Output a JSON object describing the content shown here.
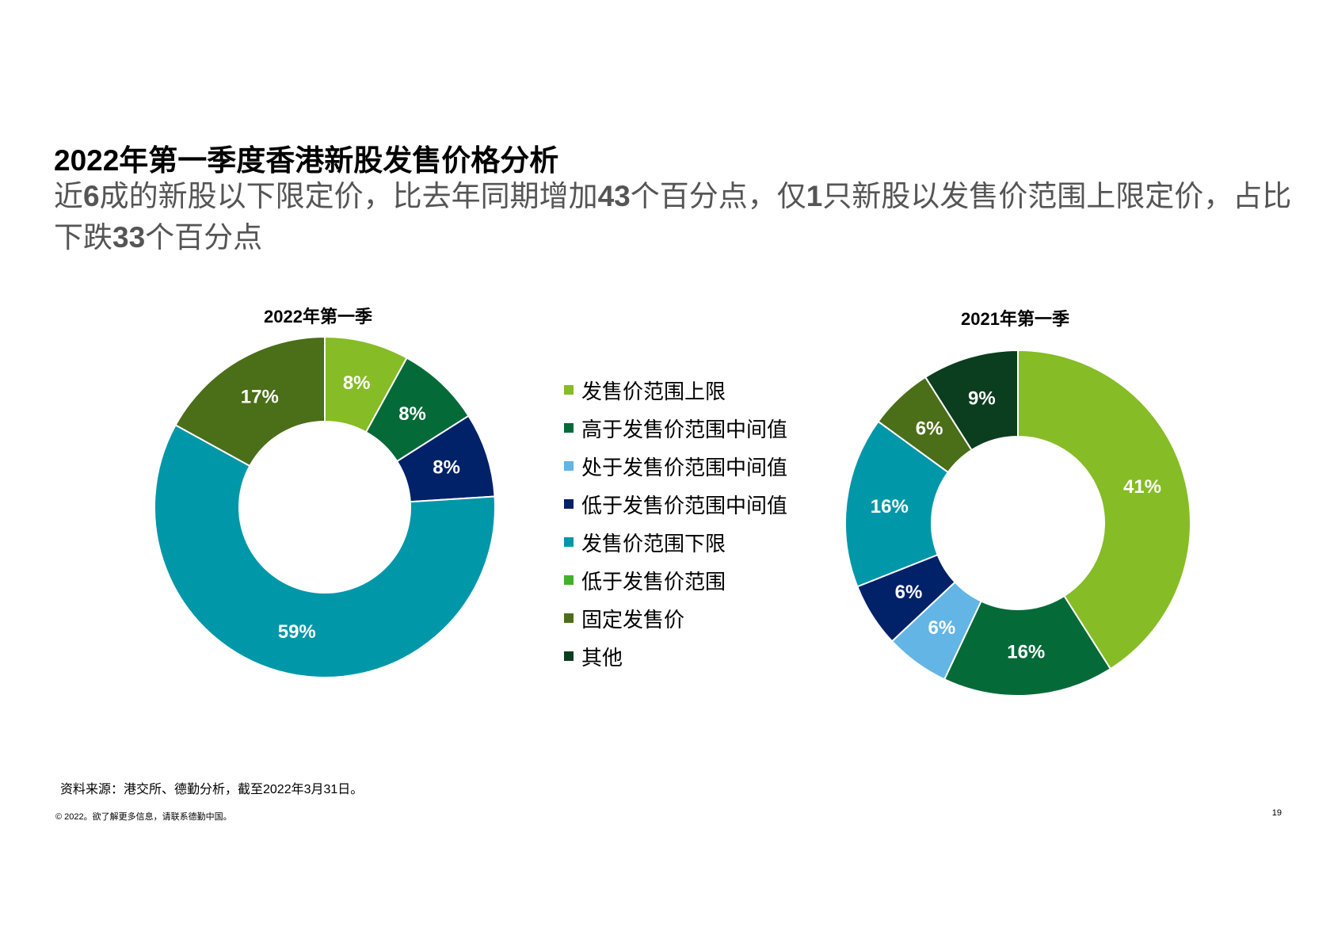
{
  "page": {
    "title": "2022年第一季度香港新股发售价格分析",
    "subtitle_parts": [
      {
        "text": "近",
        "bold": false
      },
      {
        "text": "6",
        "bold": true
      },
      {
        "text": "成的新股以下限定价，比去年同期增加",
        "bold": false
      },
      {
        "text": "43",
        "bold": true
      },
      {
        "text": "个百分点，仅",
        "bold": false
      },
      {
        "text": "1",
        "bold": true
      },
      {
        "text": "只新股以发售价范围上限定价，占比下跌",
        "bold": false
      },
      {
        "text": "33",
        "bold": true
      },
      {
        "text": "个百分点",
        "bold": false
      }
    ],
    "source": "资料来源：港交所、德勤分析，截至2022年3月31日。",
    "footer": "© 2022。欲了解更多信息，请联系德勤中国。",
    "page_number": "19"
  },
  "legend": [
    {
      "label": "发售价范围上限",
      "color": "#86BC25"
    },
    {
      "label": "高于发售价范围中间值",
      "color": "#046A38"
    },
    {
      "label": "处于发售价范围中间值",
      "color": "#62B5E5"
    },
    {
      "label": "低于发售价范围中间值",
      "color": "#012169"
    },
    {
      "label": "发售价范围下限",
      "color": "#0097A9"
    },
    {
      "label": "低于发售价范围",
      "color": "#43B02A"
    },
    {
      "label": "固定发售价",
      "color": "#4B6E18"
    },
    {
      "label": "其他",
      "color": "#0B3D1F"
    }
  ],
  "chart_data": [
    {
      "type": "pie",
      "title": "2022年第一季",
      "donut": true,
      "slices": [
        {
          "label": "发售价范围上限",
          "value": 8,
          "display": "8%",
          "color": "#86BC25"
        },
        {
          "label": "高于发售价范围中间值",
          "value": 8,
          "display": "8%",
          "color": "#046A38"
        },
        {
          "label": "低于发售价范围中间值",
          "value": 8,
          "display": "8%",
          "color": "#012169"
        },
        {
          "label": "发售价范围下限",
          "value": 59,
          "display": "59%",
          "color": "#0097A9"
        },
        {
          "label": "固定发售价",
          "value": 17,
          "display": "17%",
          "color": "#4B6E18"
        }
      ]
    },
    {
      "type": "pie",
      "title": "2021年第一季",
      "donut": true,
      "slices": [
        {
          "label": "发售价范围上限",
          "value": 41,
          "display": "41%",
          "color": "#86BC25"
        },
        {
          "label": "高于发售价范围中间值",
          "value": 16,
          "display": "16%",
          "color": "#046A38"
        },
        {
          "label": "处于发售价范围中间值",
          "value": 6,
          "display": "6%",
          "color": "#62B5E5"
        },
        {
          "label": "低于发售价范围中间值",
          "value": 6,
          "display": "6%",
          "color": "#012169"
        },
        {
          "label": "发售价范围下限",
          "value": 16,
          "display": "16%",
          "color": "#0097A9"
        },
        {
          "label": "固定发售价",
          "value": 6,
          "display": "6%",
          "color": "#4B6E18"
        },
        {
          "label": "其他",
          "value": 9,
          "display": "9%",
          "color": "#0B3D1F"
        }
      ]
    }
  ]
}
